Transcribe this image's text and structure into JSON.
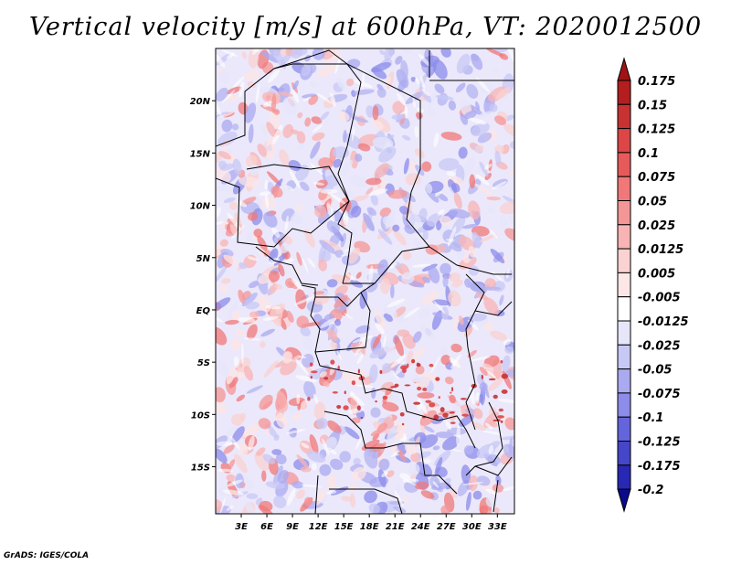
{
  "title": "Vertical velocity [m/s] at 600hPa, VT: 2020012500",
  "footer": "GrADS: IGES/COLA",
  "map": {
    "lon_range": [
      0,
      35
    ],
    "lat_range": [
      -19.5,
      25
    ],
    "lon_ticks": [
      {
        "value": 3,
        "label": "3E"
      },
      {
        "value": 6,
        "label": "6E"
      },
      {
        "value": 9,
        "label": "9E"
      },
      {
        "value": 12,
        "label": "12E"
      },
      {
        "value": 15,
        "label": "15E"
      },
      {
        "value": 18,
        "label": "18E"
      },
      {
        "value": 21,
        "label": "21E"
      },
      {
        "value": 24,
        "label": "24E"
      },
      {
        "value": 27,
        "label": "27E"
      },
      {
        "value": 30,
        "label": "30E"
      },
      {
        "value": 33,
        "label": "33E"
      }
    ],
    "lat_ticks": [
      {
        "value": 20,
        "label": "20N"
      },
      {
        "value": 15,
        "label": "15N"
      },
      {
        "value": 10,
        "label": "10N"
      },
      {
        "value": 5,
        "label": "5N"
      },
      {
        "value": 0,
        "label": "EQ"
      },
      {
        "value": -5,
        "label": "5S"
      },
      {
        "value": -10,
        "label": "10S"
      },
      {
        "value": -15,
        "label": "15S"
      }
    ]
  },
  "colorbar": {
    "levels": [
      {
        "label": "0.175",
        "color": "#b41e1e"
      },
      {
        "label": "0.15",
        "color": "#c83232"
      },
      {
        "label": "0.125",
        "color": "#dc4646"
      },
      {
        "label": "0.1",
        "color": "#e65a5a"
      },
      {
        "label": "0.075",
        "color": "#f07878"
      },
      {
        "label": "0.05",
        "color": "#f59696"
      },
      {
        "label": "0.025",
        "color": "#f8b4b4"
      },
      {
        "label": "0.0125",
        "color": "#fad2d2"
      },
      {
        "label": "0.005",
        "color": "#fce6e6"
      },
      {
        "label": "-0.005",
        "color": "#ffffff"
      },
      {
        "label": "-0.0125",
        "color": "#e6e6fa"
      },
      {
        "label": "-0.025",
        "color": "#c8c8f5"
      },
      {
        "label": "-0.05",
        "color": "#aaaaf0"
      },
      {
        "label": "-0.075",
        "color": "#8c8ceb"
      },
      {
        "label": "-0.1",
        "color": "#6464dc"
      },
      {
        "label": "-0.125",
        "color": "#4646c8"
      },
      {
        "label": "-0.175",
        "color": "#2828b4"
      },
      {
        "label": "-0.2",
        "color": "#14149b"
      }
    ],
    "top_arrow_color": "#a01414",
    "bottom_arrow_color": "#0a0a8c"
  }
}
